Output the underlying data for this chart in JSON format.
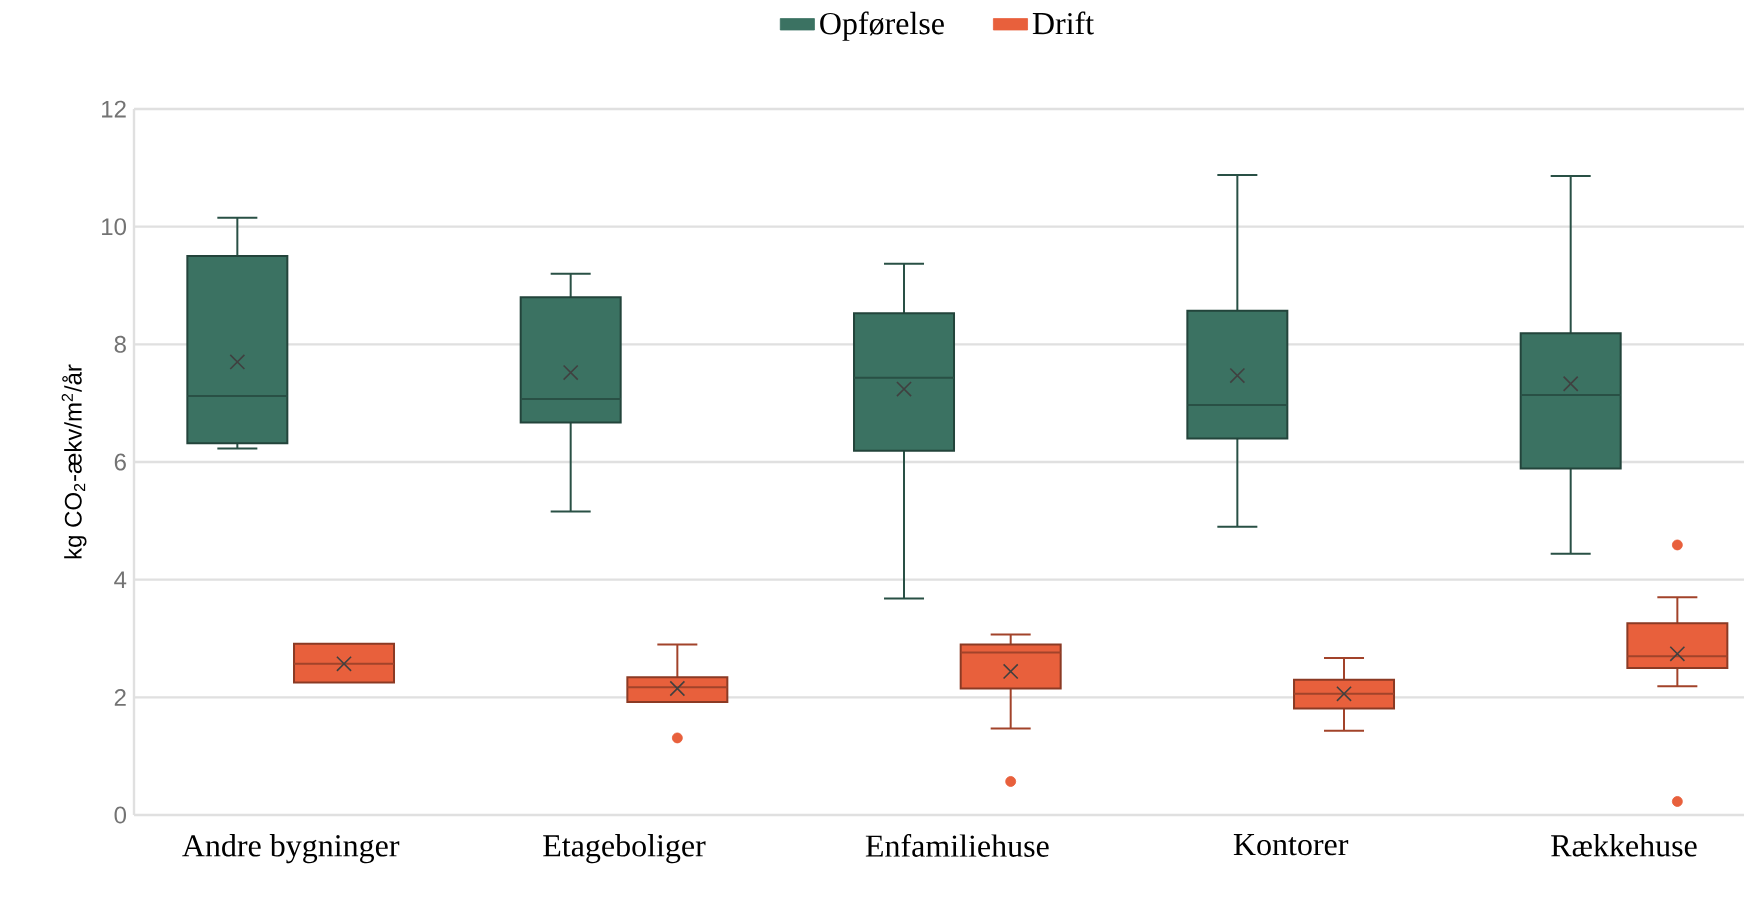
{
  "chart_data": {
    "type": "box",
    "ylabel": "kg CO$_{2}$-ækv/m$^{2}$/år",
    "categories": [
      "Andre bygninger",
      "Etageboliger",
      "Enfamiliehuse",
      "Kontorer",
      "Rækkehuse"
    ],
    "series": [
      {
        "name": "Opførelse",
        "color": "#3b7262",
        "boxes": [
          {
            "low": 6.23,
            "q1": 6.32,
            "median": 7.12,
            "q3": 9.5,
            "high": 10.15,
            "mean": 7.7
          },
          {
            "low": 5.16,
            "q1": 6.67,
            "median": 7.07,
            "q3": 8.8,
            "high": 9.2,
            "mean": 7.52
          },
          {
            "low": 3.68,
            "q1": 6.19,
            "median": 7.43,
            "q3": 8.53,
            "high": 9.37,
            "mean": 7.24
          },
          {
            "low": 4.9,
            "q1": 6.4,
            "median": 6.97,
            "q3": 8.57,
            "high": 10.88,
            "mean": 7.47
          },
          {
            "low": 4.44,
            "q1": 5.89,
            "median": 7.14,
            "q3": 8.19,
            "high": 10.86,
            "mean": 7.33
          }
        ]
      },
      {
        "name": "Drift",
        "color": "#e8603c",
        "boxes": [
          {
            "low": 2.25,
            "q1": 2.25,
            "median": 2.57,
            "q3": 2.91,
            "high": 2.91,
            "mean": 2.57
          },
          {
            "low": 1.92,
            "q1": 1.92,
            "median": 2.17,
            "q3": 2.34,
            "high": 2.9,
            "mean": 2.15,
            "outliers": [
              1.31
            ]
          },
          {
            "low": 1.47,
            "q1": 2.15,
            "median": 2.76,
            "q3": 2.9,
            "high": 3.07,
            "mean": 2.44,
            "outliers": [
              0.57
            ]
          },
          {
            "low": 1.43,
            "q1": 1.81,
            "median": 2.06,
            "q3": 2.3,
            "high": 2.67,
            "mean": 2.06
          },
          {
            "low": 2.19,
            "q1": 2.5,
            "median": 2.7,
            "q3": 3.26,
            "high": 3.7,
            "mean": 2.74,
            "outliers": [
              4.59,
              0.23
            ]
          }
        ]
      }
    ],
    "ylim": [
      0,
      12
    ],
    "yticks": [
      0,
      2,
      4,
      6,
      8,
      10,
      12
    ],
    "grid": "y",
    "legend": "top",
    "marker": "cross"
  }
}
